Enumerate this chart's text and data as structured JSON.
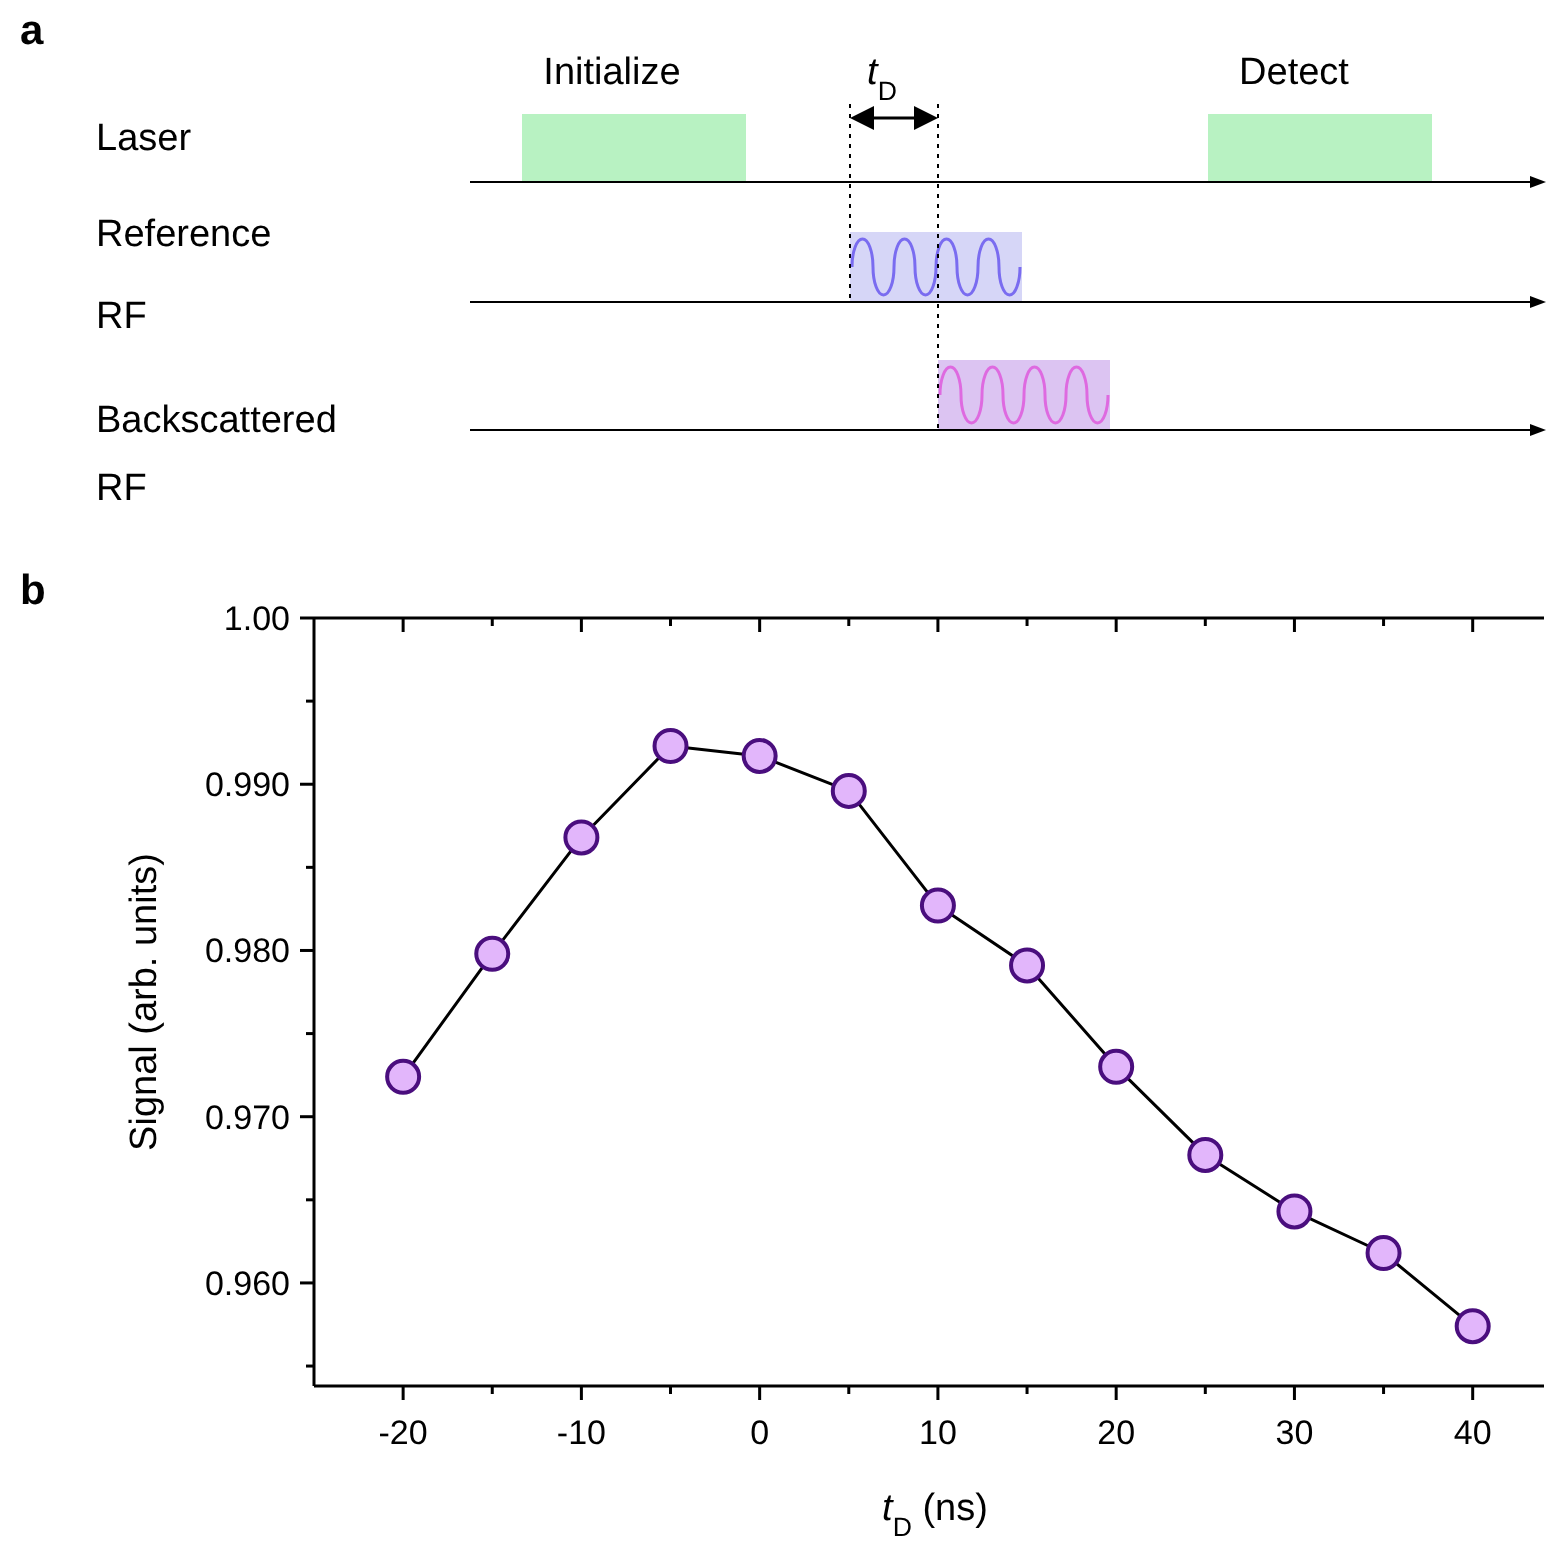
{
  "chart_data": [
    {
      "type": "other",
      "title": "a",
      "categories": [
        "Laser",
        "Reference RF",
        "Backscattered RF"
      ],
      "annotations": [
        "Initialize",
        "Detect",
        "t$_{D}$"
      ]
    },
    {
      "type": "line",
      "title": "b",
      "xlabel": "t$_{D}$ (ns)",
      "ylabel": "Signal (arb. units)",
      "x": [
        -20,
        -15,
        -10,
        -5,
        0,
        5,
        10,
        15,
        20,
        25,
        30,
        35,
        40
      ],
      "series": [
        {
          "color": "#e2b6fb",
          "values": [
            0.9724,
            0.9798,
            0.9868,
            0.9923,
            0.9917,
            0.9896,
            0.9827,
            0.9791,
            0.973,
            0.9677,
            0.9643,
            0.9618,
            0.9574
          ]
        }
      ],
      "xlim": [
        -25,
        44
      ],
      "ylim": [
        0.9538,
        1.0
      ],
      "xticks": [
        {
          "value": -20,
          "label": "-20"
        },
        {
          "value": -15,
          "label": null
        },
        {
          "value": -10,
          "label": "-10"
        },
        {
          "value": -5,
          "label": null
        },
        {
          "value": 0,
          "label": "0"
        },
        {
          "value": 5,
          "label": null
        },
        {
          "value": 10,
          "label": "10"
        },
        {
          "value": 15,
          "label": null
        },
        {
          "value": 20,
          "label": "20"
        },
        {
          "value": 25,
          "label": null
        },
        {
          "value": 30,
          "label": "30"
        },
        {
          "value": 35,
          "label": null
        },
        {
          "value": 40,
          "label": "40"
        }
      ],
      "yticks": [
        {
          "value": 0.955,
          "label": null
        },
        {
          "value": 0.96,
          "label": "0.960"
        },
        {
          "value": 0.965,
          "label": null
        },
        {
          "value": 0.97,
          "label": "0.970"
        },
        {
          "value": 0.975,
          "label": null
        },
        {
          "value": 0.98,
          "label": "0.980"
        },
        {
          "value": 0.985,
          "label": null
        },
        {
          "value": 0.99,
          "label": "0.990"
        },
        {
          "value": 0.995,
          "label": null
        },
        {
          "value": 1.0,
          "label": "1.00"
        }
      ],
      "grid": false,
      "marker": "circle",
      "line_style": "solid"
    }
  ]
}
